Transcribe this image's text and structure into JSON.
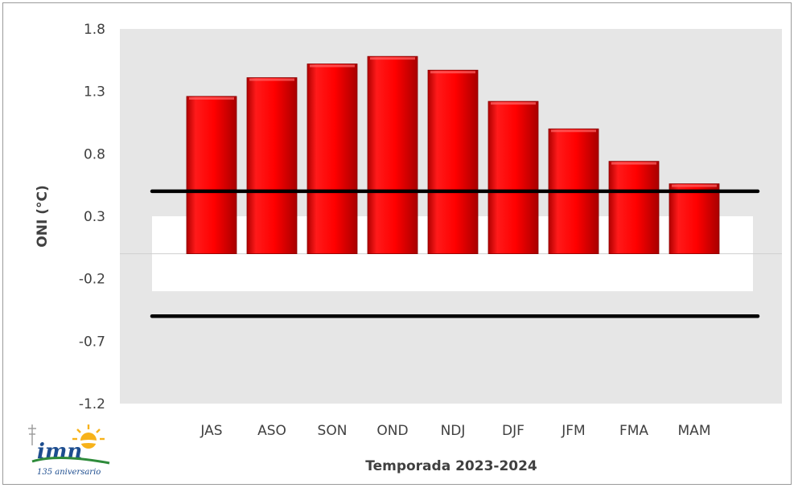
{
  "chart_data": {
    "type": "bar",
    "title": "",
    "xlabel": "Temporada 2023-2024",
    "ylabel": "ONI (°C)",
    "categories": [
      "JAS",
      "ASO",
      "SON",
      "OND",
      "NDJ",
      "DJF",
      "JFM",
      "FMA",
      "MAM"
    ],
    "series": [
      {
        "values": [
          1.26,
          1.41,
          1.52,
          1.58,
          1.47,
          1.22,
          1.0,
          0.74,
          0.56
        ]
      }
    ],
    "ylim": [
      -1.2,
      1.8
    ],
    "yticks": [
      "1.8",
      "1.3",
      "0.8",
      "0.3",
      "-0.2",
      "-0.7",
      "-1.2"
    ],
    "reference_lines": [
      0.5,
      -0.5
    ],
    "neutral_band": [
      -0.3,
      0.3
    ],
    "grid": false,
    "colors": {
      "bar": "#ff0000",
      "bar_shade": "#c00000",
      "plot_bg": "#e6e6e6",
      "band": "#ffffff",
      "ref_line": "#000000"
    }
  },
  "logo": {
    "text": "imn",
    "subtitle": "135 aniversario"
  }
}
